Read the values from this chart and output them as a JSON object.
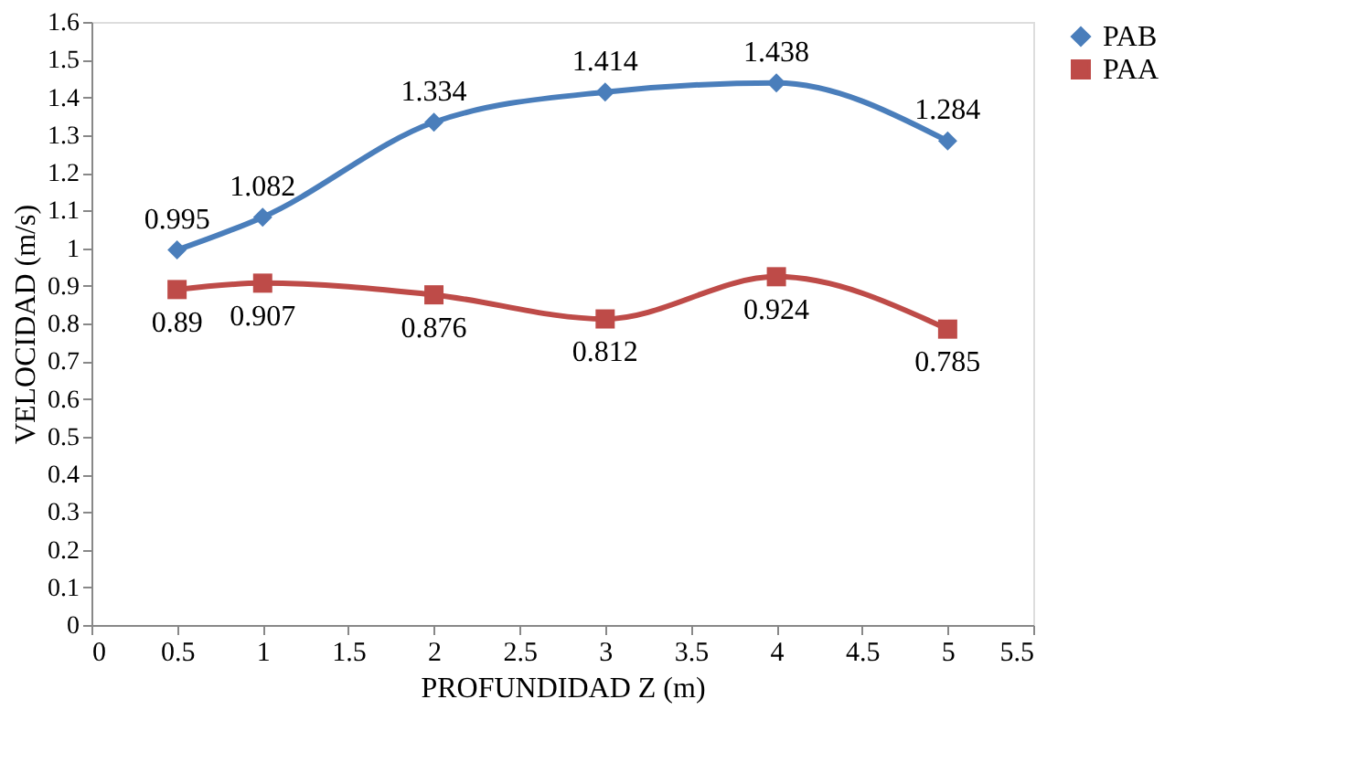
{
  "chart_data": {
    "type": "line",
    "xlabel": "PROFUNDIDAD Z (m)",
    "ylabel": "VELOCIDAD (m/s)",
    "x": [
      0.5,
      1,
      2,
      3,
      4,
      5
    ],
    "series": [
      {
        "name": "PAB",
        "color": "#4a7ebb",
        "marker": "diamond",
        "values": [
          0.995,
          1.082,
          1.334,
          1.414,
          1.438,
          1.284
        ]
      },
      {
        "name": "PAA",
        "color": "#be4b48",
        "marker": "square",
        "values": [
          0.89,
          0.907,
          0.876,
          0.812,
          0.924,
          0.785
        ]
      }
    ],
    "xlim": [
      0,
      5.5
    ],
    "xticks": [
      0,
      0.5,
      1,
      1.5,
      2,
      2.5,
      3,
      3.5,
      4,
      4.5,
      5,
      5.5
    ],
    "ylim": [
      0,
      1.6
    ],
    "yticks": [
      0,
      0.1,
      0.2,
      0.3,
      0.4,
      0.5,
      0.6,
      0.7,
      0.8,
      0.9,
      1,
      1.1,
      1.2,
      1.3,
      1.4,
      1.5,
      1.6
    ],
    "grid": false,
    "legend": "right",
    "data_labels": true,
    "line_style": "solid"
  }
}
